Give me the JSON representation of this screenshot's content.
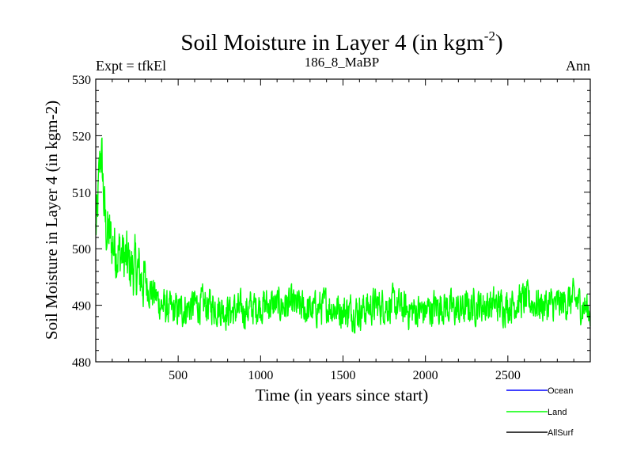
{
  "header": {
    "title_main": "Soil Moisture in Layer 4 (in kgm",
    "title_sup": "-2",
    "title_end": ")",
    "expt_label": "Expt = tfkEl",
    "subtitle": "186_8_MaBP",
    "period": "Ann"
  },
  "chart_data": {
    "type": "line",
    "title": "Soil Moisture in Layer 4 (in kgm-2)",
    "xlabel": "Time (in years since start)",
    "ylabel": "Soil Moisture in Layer 4 (in kgm-2)",
    "xlim": [
      0,
      3000
    ],
    "ylim": [
      480,
      530
    ],
    "x_ticks": [
      500,
      1000,
      1500,
      2000,
      2500
    ],
    "y_ticks": [
      480,
      490,
      500,
      510,
      520,
      530
    ],
    "grid": false,
    "legend_position": "bottom-right",
    "series": [
      {
        "name": "Ocean",
        "color": "#0000ff",
        "values": []
      },
      {
        "name": "Land",
        "color": "#00ff00",
        "x": [
          0,
          10,
          20,
          30,
          40,
          50,
          60,
          80,
          100,
          120,
          150,
          180,
          200,
          250,
          300,
          350,
          400,
          450,
          500,
          600,
          700,
          800,
          900,
          1000,
          1100,
          1200,
          1300,
          1400,
          1500,
          1600,
          1700,
          1800,
          1900,
          2000,
          2100,
          2200,
          2300,
          2400,
          2500,
          2600,
          2700,
          2800,
          2900,
          3000
        ],
        "values": [
          503,
          506,
          512,
          518,
          514,
          508,
          504,
          502,
          501,
          500,
          499,
          498,
          497,
          496,
          494,
          492,
          490,
          489,
          489,
          490,
          490,
          489,
          489,
          490,
          490,
          490,
          489,
          490,
          489,
          489,
          490,
          490,
          489,
          489,
          490,
          489,
          490,
          490,
          490,
          491,
          490,
          490,
          491,
          489
        ]
      },
      {
        "name": "AllSurf",
        "color": "#000000",
        "values": []
      }
    ]
  }
}
